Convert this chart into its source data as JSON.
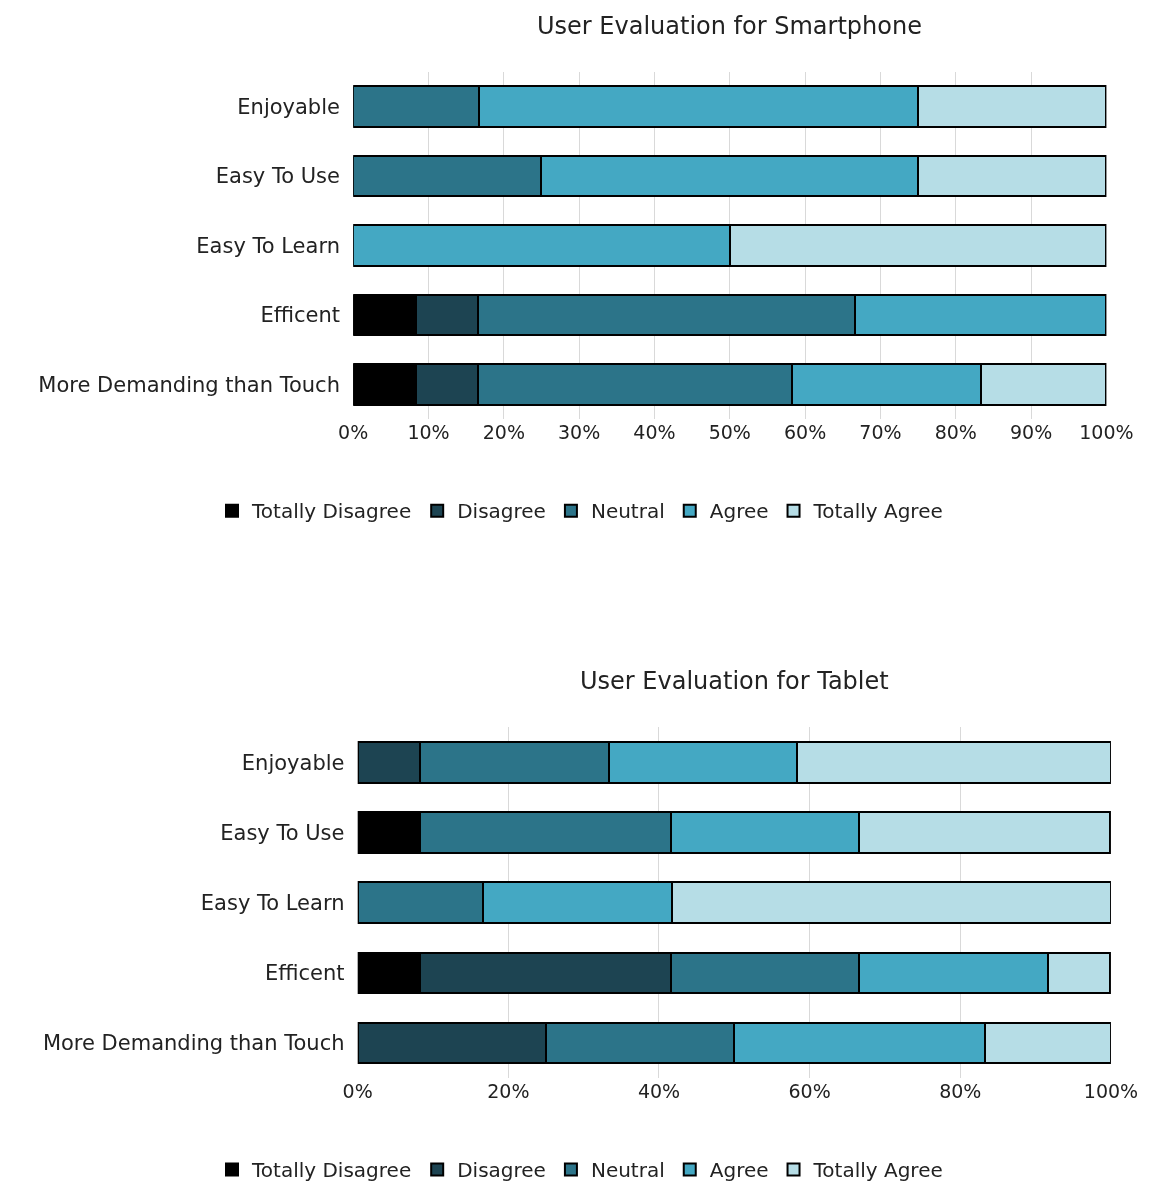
{
  "chart_data": [
    {
      "type": "bar",
      "orientation": "horizontal",
      "stacked": true,
      "title": "User Evaluation for Smartphone",
      "categories": [
        "Enjoyable",
        "Easy To Use",
        "Easy To Learn",
        "Efficent",
        "More Demanding than Touch"
      ],
      "series": [
        {
          "name": "Totally Disagree",
          "color": "#000000",
          "values": [
            null,
            null,
            null,
            8.3,
            8.3
          ]
        },
        {
          "name": "Disagree",
          "color": "#1d4452",
          "values": [
            null,
            null,
            null,
            8.3,
            8.3
          ]
        },
        {
          "name": "Neutral",
          "color": "#2c7489",
          "values": [
            16.7,
            25,
            null,
            50,
            41.7
          ]
        },
        {
          "name": "Agree",
          "color": "#44a8c3",
          "values": [
            58.3,
            50,
            50,
            33.3,
            25
          ]
        },
        {
          "name": "Totally Agree",
          "color": "#b6dde6",
          "values": [
            25,
            25,
            50,
            null,
            16.7
          ]
        }
      ],
      "xlim": [
        0,
        100
      ],
      "xticks": [
        {
          "value": 0,
          "label": "0%"
        },
        {
          "value": 10,
          "label": "10%"
        },
        {
          "value": 20,
          "label": "20%"
        },
        {
          "value": 30,
          "label": "30%"
        },
        {
          "value": 40,
          "label": "40%"
        },
        {
          "value": 50,
          "label": "50%"
        },
        {
          "value": 60,
          "label": "60%"
        },
        {
          "value": 70,
          "label": "70%"
        },
        {
          "value": 80,
          "label": "80%"
        },
        {
          "value": 90,
          "label": "90%"
        },
        {
          "value": 100,
          "label": "100%"
        }
      ],
      "grid": "x",
      "legend": "bottom"
    },
    {
      "type": "bar",
      "orientation": "horizontal",
      "stacked": true,
      "title": "User Evaluation for Tablet",
      "categories": [
        "Enjoyable",
        "Easy To Use",
        "Easy To Learn",
        "Efficent",
        "More Demanding than Touch"
      ],
      "series": [
        {
          "name": "Totally Disagree",
          "color": "#000000",
          "values": [
            null,
            8.3,
            null,
            8.3,
            null
          ]
        },
        {
          "name": "Disagree",
          "color": "#1d4452",
          "values": [
            8.3,
            null,
            null,
            33.3,
            25
          ]
        },
        {
          "name": "Neutral",
          "color": "#2c7489",
          "values": [
            25,
            33.3,
            16.7,
            25,
            25
          ]
        },
        {
          "name": "Agree",
          "color": "#44a8c3",
          "values": [
            25,
            25,
            25,
            25,
            33.3
          ]
        },
        {
          "name": "Totally Agree",
          "color": "#b6dde6",
          "values": [
            41.7,
            33.3,
            58.3,
            8.3,
            16.7
          ]
        }
      ],
      "xlim": [
        0,
        100
      ],
      "xticks": [
        {
          "value": 0,
          "label": "0%"
        },
        {
          "value": 20,
          "label": "20%"
        },
        {
          "value": 40,
          "label": "40%"
        },
        {
          "value": 60,
          "label": "60%"
        },
        {
          "value": 80,
          "label": "80%"
        },
        {
          "value": 100,
          "label": "100%"
        }
      ],
      "grid": "x",
      "legend": "bottom"
    }
  ]
}
